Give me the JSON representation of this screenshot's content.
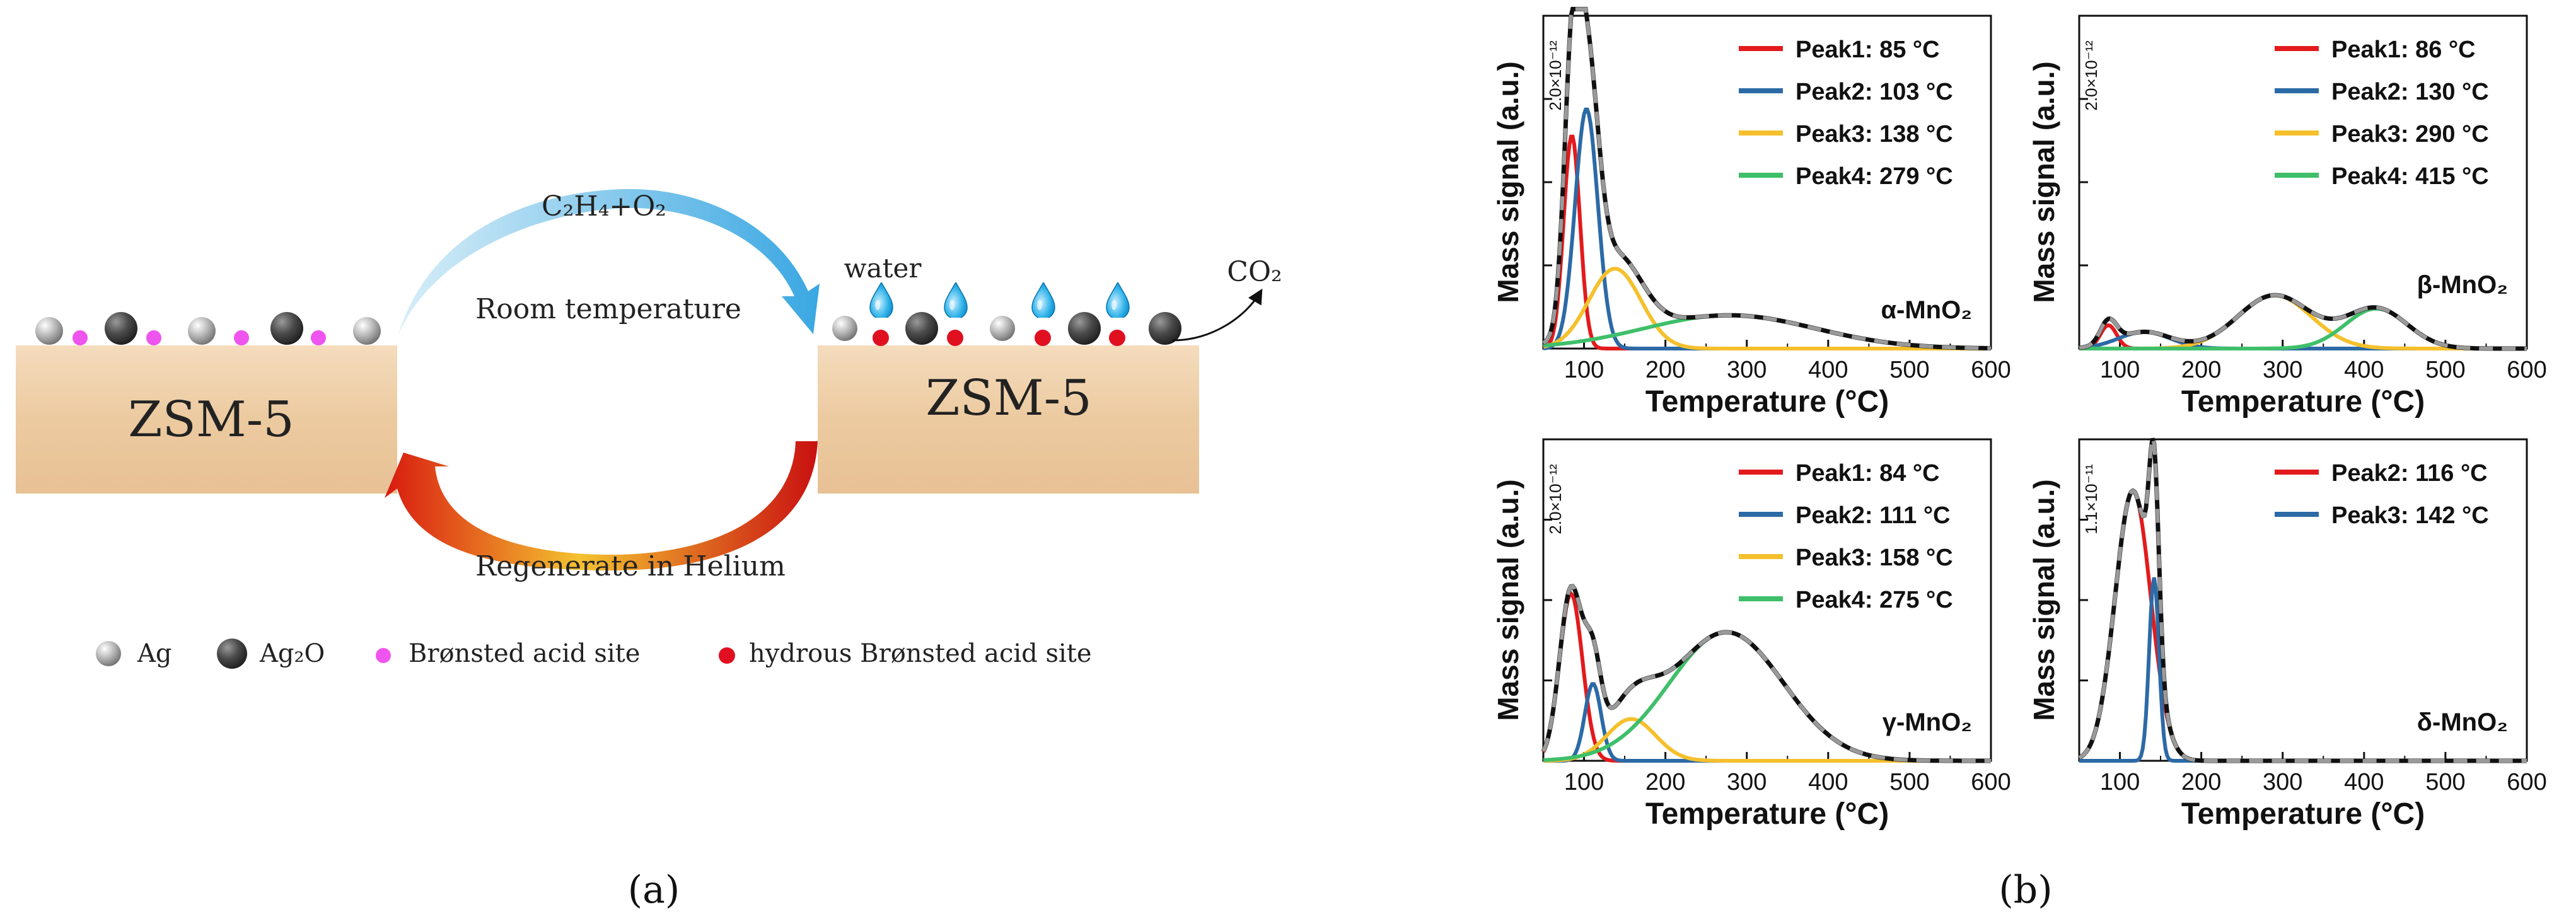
{
  "panel_a": {
    "caption": "(a)",
    "zsm_left": "ZSM-5",
    "zsm_right": "ZSM-5",
    "arc_top_reactant": "C₂H₄+O₂",
    "arc_top_condition": "Room temperature",
    "arc_bottom_label": "Regenerate in Helium",
    "water_label": "water",
    "product_label": "CO₂",
    "legend": {
      "ag": "Ag",
      "ag2o": "Ag₂O",
      "bronsted": "Brønsted acid site",
      "hydrous": "hydrous Brønsted acid site"
    },
    "colors": {
      "substrate": "#f2d7b6",
      "bronsted": "#ee55ee",
      "hydrous": "#e01020",
      "water": "#1fa4dd",
      "arc_top_start": "#bfe3f2",
      "arc_top_end": "#4fb2e6",
      "arc_bottom_start": "#f7d24a",
      "arc_bottom_end": "#d31414"
    }
  },
  "panel_b": {
    "caption": "(b)"
  },
  "chart_data": [
    {
      "type": "line",
      "title": "α-MnO₂",
      "xlabel": "Temperature (°C)",
      "ylabel": "Mass signal (a.u.)",
      "y_scale_label": "2.0×10⁻¹²",
      "xlim": [
        50,
        600
      ],
      "ylim": [
        0,
        1.0
      ],
      "x_ticks": [
        "100",
        "200",
        "300",
        "400",
        "500",
        "600"
      ],
      "legend_position": "top-right",
      "series": [
        {
          "name": "Peak1: 85 °C",
          "color": "#e31a1c",
          "center": 85,
          "height": 0.64,
          "width": 10
        },
        {
          "name": "Peak2: 103 °C",
          "color": "#2c6aa6",
          "center": 103,
          "height": 0.72,
          "width": 14
        },
        {
          "name": "Peak3: 138 °C",
          "color": "#f5c02c",
          "center": 138,
          "height": 0.24,
          "width": 32
        },
        {
          "name": "Peak4: 279 °C",
          "color": "#3fbf6a",
          "center": 279,
          "height": 0.1,
          "width": 105
        }
      ]
    },
    {
      "type": "line",
      "title": "β-MnO₂",
      "xlabel": "Temperature (°C)",
      "ylabel": "Mass signal (a.u.)",
      "y_scale_label": "2.0×10⁻¹²",
      "xlim": [
        50,
        600
      ],
      "ylim": [
        0,
        1.0
      ],
      "x_ticks": [
        "100",
        "200",
        "300",
        "400",
        "500",
        "600"
      ],
      "legend_position": "top-right",
      "series": [
        {
          "name": "Peak1: 86 °C",
          "color": "#e31a1c",
          "center": 86,
          "height": 0.07,
          "width": 10
        },
        {
          "name": "Peak2: 130 °C",
          "color": "#2c6aa6",
          "center": 130,
          "height": 0.05,
          "width": 32
        },
        {
          "name": "Peak3: 290 °C",
          "color": "#f5c02c",
          "center": 290,
          "height": 0.16,
          "width": 45
        },
        {
          "name": "Peak4: 415 °C",
          "color": "#3fbf6a",
          "center": 415,
          "height": 0.12,
          "width": 38
        }
      ]
    },
    {
      "type": "line",
      "title": "γ-MnO₂",
      "xlabel": "Temperature (°C)",
      "ylabel": "Mass signal (a.u.)",
      "y_scale_label": "2.0×10⁻¹²",
      "xlim": [
        50,
        600
      ],
      "ylim": [
        0,
        1.0
      ],
      "x_ticks": [
        "100",
        "200",
        "300",
        "400",
        "500",
        "600"
      ],
      "legend_position": "top-right",
      "series": [
        {
          "name": "Peak1: 84 °C",
          "color": "#e31a1c",
          "center": 84,
          "height": 0.52,
          "width": 14
        },
        {
          "name": "Peak2: 111 °C",
          "color": "#2c6aa6",
          "center": 111,
          "height": 0.24,
          "width": 10
        },
        {
          "name": "Peak3: 158 °C",
          "color": "#f5c02c",
          "center": 158,
          "height": 0.13,
          "width": 30
        },
        {
          "name": "Peak4: 275 °C",
          "color": "#3fbf6a",
          "center": 275,
          "height": 0.4,
          "width": 70
        }
      ]
    },
    {
      "type": "line",
      "title": "δ-MnO₂",
      "xlabel": "Temperature (°C)",
      "ylabel": "Mass signal (a.u.)",
      "y_scale_label": "1.1×10⁻¹¹",
      "xlim": [
        50,
        600
      ],
      "ylim": [
        0,
        1.0
      ],
      "x_ticks": [
        "100",
        "200",
        "300",
        "400",
        "500",
        "600"
      ],
      "legend_position": "top-right",
      "series": [
        {
          "name": "Peak2: 116 °C",
          "color": "#e31a1c",
          "center": 116,
          "height": 0.84,
          "width": 22
        },
        {
          "name": "Peak3: 142 °C",
          "color": "#2c6aa6",
          "center": 142,
          "height": 0.57,
          "width": 6
        }
      ]
    }
  ]
}
